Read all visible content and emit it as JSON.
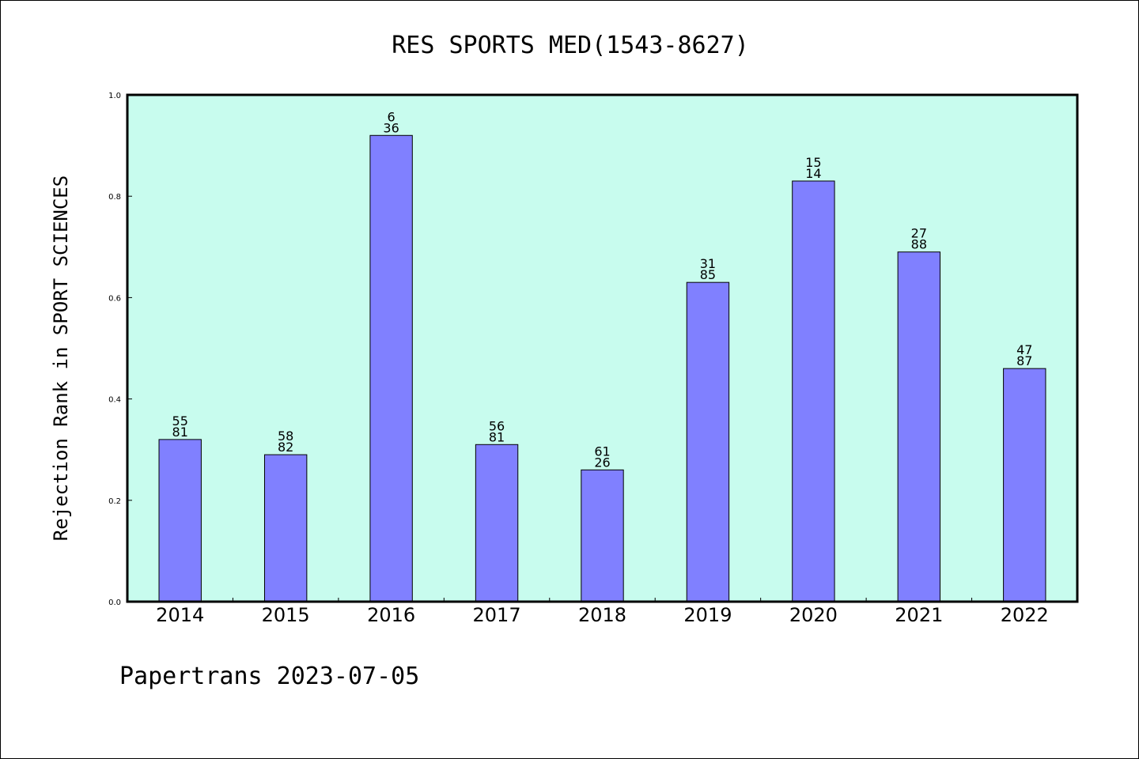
{
  "chart_data": {
    "type": "bar",
    "title": "RES SPORTS MED(1543-8627)",
    "xlabel": "",
    "ylabel": "Rejection Rank in SPORT SCIENCES",
    "categories": [
      "2014",
      "2015",
      "2016",
      "2017",
      "2018",
      "2019",
      "2020",
      "2021",
      "2022"
    ],
    "values": [
      0.32,
      0.29,
      0.92,
      0.31,
      0.26,
      0.63,
      0.83,
      0.69,
      0.46
    ],
    "bar_labels": [
      [
        "55",
        "81"
      ],
      [
        "58",
        "82"
      ],
      [
        "6",
        "36"
      ],
      [
        "56",
        "81"
      ],
      [
        "61",
        "26"
      ],
      [
        "31",
        "85"
      ],
      [
        "15",
        "14"
      ],
      [
        "27",
        "88"
      ],
      [
        "47",
        "87"
      ]
    ],
    "ylim": [
      0.0,
      1.0
    ],
    "yticks": [
      "0.0",
      "0.2",
      "0.4",
      "0.6",
      "0.8",
      "1.0"
    ],
    "grid": false,
    "colors": {
      "plot_background": "#c8fcee",
      "bar_fill": "#8080ff",
      "bar_edge": "#000000",
      "axis": "#000000"
    }
  },
  "footer": "Papertrans 2023-07-05"
}
